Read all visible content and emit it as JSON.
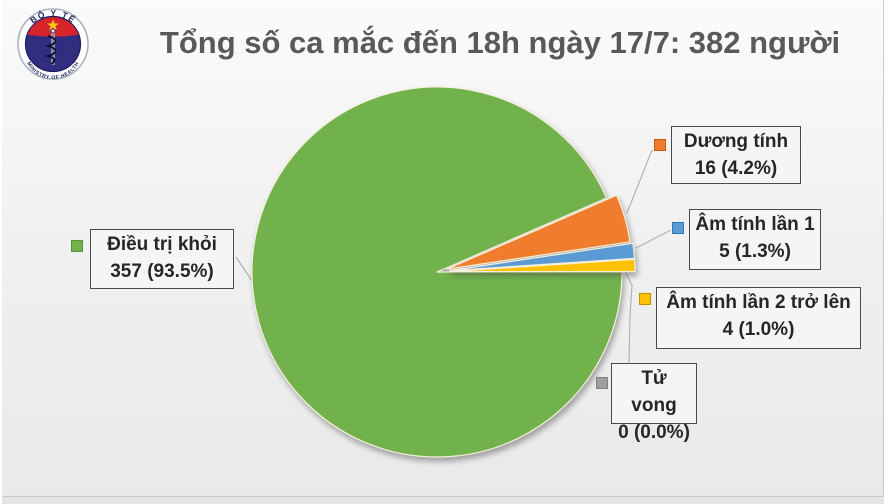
{
  "logo": {
    "top_text": "BỘ Y TẾ",
    "bottom_text": "MINISTRY OF HEALTH"
  },
  "title": "Tổng số ca mắc đến 18h ngày 17/7: 382 người",
  "chart_data": {
    "type": "pie",
    "title": "Tổng số ca mắc đến 18h ngày 17/7: 382 người",
    "total": 382,
    "unit": "người",
    "legend_position": "callout-labels",
    "slices": [
      {
        "label": "Điều trị khỏi",
        "value": 357,
        "percent": 93.5,
        "display": "357 (93.5%)",
        "color": "#72b24d",
        "border_color": "#5a8f3a",
        "exploded": false
      },
      {
        "label": "Dương tính",
        "value": 16,
        "percent": 4.2,
        "display": "16 (4.2%)",
        "color": "#f07d2d",
        "border_color": "#c55a11",
        "exploded": true
      },
      {
        "label": "Âm tính lần 1",
        "value": 5,
        "percent": 1.3,
        "display": "5 (1.3%)",
        "color": "#5b9bd5",
        "border_color": "#2e75b6",
        "exploded": true
      },
      {
        "label": "Âm tính lần 2 trở lên",
        "value": 4,
        "percent": 1.0,
        "display": "4 (1.0%)",
        "color": "#fec101",
        "border_color": "#bf9000",
        "exploded": true
      },
      {
        "label": "Tử vong",
        "value": 0,
        "percent": 0.0,
        "display": "0 (0.0%)",
        "color": "#9e9e9e",
        "border_color": "#7f7f7f",
        "exploded": false
      }
    ]
  }
}
